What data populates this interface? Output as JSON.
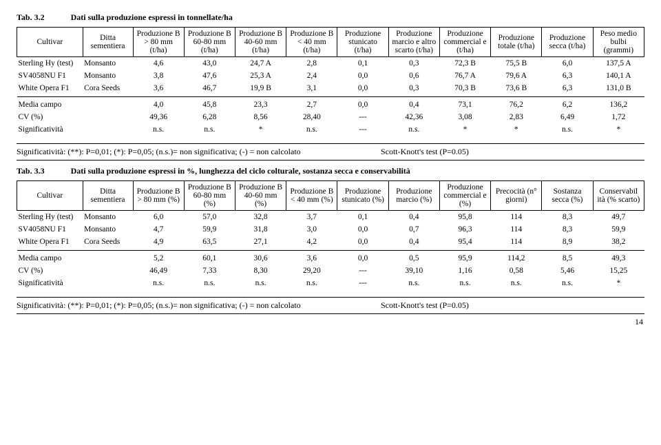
{
  "tab32": {
    "label": "Tab. 3.2",
    "title": "Dati sulla produzione espressi in tonnellate/ha",
    "headers": [
      "Cultivar",
      "Ditta sementiera",
      "Produzione B > 80 mm (t/ha)",
      "Produzione B 60-80 mm (t/ha)",
      "Produzione B 40-60 mm (t/ha)",
      "Produzione B < 40 mm (t/ha)",
      "Produzione stunicato (t/ha)",
      "Produzione marcio e altro scarto (t/ha)",
      "Produzione commercial e (t/ha)",
      "Produzione totale (t/ha)",
      "Produzione secca (t/ha)",
      "Peso medio bulbi (grammi)"
    ],
    "rows": [
      [
        "Sterling Hy (test)",
        "Monsanto",
        "4,6",
        "43,0",
        "24,7  A",
        "2,8",
        "0,1",
        "0,3",
        "72,3  B",
        "75,5  B",
        "6,0",
        "137,5  A"
      ],
      [
        "SV4058NU F1",
        "Monsanto",
        "3,8",
        "47,6",
        "25,3  A",
        "2,4",
        "0,0",
        "0,6",
        "76,7  A",
        "79,6  A",
        "6,3",
        "140,1  A"
      ],
      [
        "White Opera F1",
        "Cora Seeds",
        "3,6",
        "46,7",
        "19,9  B",
        "3,1",
        "0,0",
        "0,3",
        "70,3  B",
        "73,6  B",
        "6,3",
        "131,0  B"
      ]
    ],
    "stats": [
      [
        "Media campo",
        "",
        "4,0",
        "45,8",
        "23,3",
        "2,7",
        "0,0",
        "0,4",
        "73,1",
        "76,2",
        "6,2",
        "136,2"
      ],
      [
        "CV (%)",
        "",
        "49,36",
        "6,28",
        "8,56",
        "28,40",
        "---",
        "42,36",
        "3,08",
        "2,83",
        "6,49",
        "1,72"
      ],
      [
        "Significatività",
        "",
        "n.s.",
        "n.s.",
        "*",
        "n.s.",
        "---",
        "n.s.",
        "*",
        "*",
        "n.s.",
        "*"
      ]
    ]
  },
  "sig_left": "Significatività: (**): P=0,01; (*): P=0,05; (n.s.)= non significativa; (-) = non calcolato",
  "sig_right": "Scott-Knott's test (P=0.05)",
  "tab33": {
    "label": "Tab. 3.3",
    "title": "Dati sulla produzione espressi in %, lunghezza del ciclo colturale, sostanza secca e conservabilità",
    "headers": [
      "Cultivar",
      "Ditta sementiera",
      "Produzione B > 80 mm (%)",
      "Produzione B 60-80 mm (%)",
      "Produzione B 40-60 mm (%)",
      "Produzione B < 40 mm (%)",
      "Produzione stunicato (%)",
      "Produzione marcio (%)",
      "Produzione commercial e (%)",
      "Precocità (n° giorni)",
      "Sostanza secca (%)",
      "Conservabil ità (% scarto)"
    ],
    "rows": [
      [
        "Sterling Hy (test)",
        "Monsanto",
        "6,0",
        "57,0",
        "32,8",
        "3,7",
        "0,1",
        "0,4",
        "95,8",
        "114",
        "8,3",
        "49,7"
      ],
      [
        "SV4058NU F1",
        "Monsanto",
        "4,7",
        "59,9",
        "31,8",
        "3,0",
        "0,0",
        "0,7",
        "96,3",
        "114",
        "8,3",
        "59,9"
      ],
      [
        "White Opera F1",
        "Cora Seeds",
        "4,9",
        "63,5",
        "27,1",
        "4,2",
        "0,0",
        "0,4",
        "95,4",
        "114",
        "8,9",
        "38,2"
      ]
    ],
    "stats": [
      [
        "Media campo",
        "",
        "5,2",
        "60,1",
        "30,6",
        "3,6",
        "0,0",
        "0,5",
        "95,9",
        "114,2",
        "8,5",
        "49,3"
      ],
      [
        "CV (%)",
        "",
        "46,49",
        "7,33",
        "8,30",
        "29,20",
        "---",
        "39,10",
        "1,16",
        "0,58",
        "5,46",
        "15,25"
      ],
      [
        "Significatività",
        "",
        "n.s.",
        "n.s.",
        "n.s.",
        "n.s.",
        "---",
        "n.s.",
        "n.s.",
        "n.s.",
        "n.s.",
        "*"
      ]
    ]
  },
  "page_number": "14"
}
